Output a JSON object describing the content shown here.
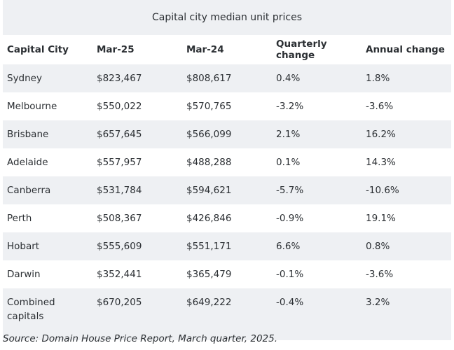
{
  "title": "Capital city median unit prices",
  "headers": [
    "Capital City",
    "Mar-25",
    "Mar-24",
    "Quarterly change",
    "Annual change"
  ],
  "rows": [
    [
      "Sydney",
      "$823,467",
      "$808,617",
      "0.4%",
      "1.8%"
    ],
    [
      "Melbourne",
      "$550,022",
      "$570,765",
      "-3.2%",
      "-3.6%"
    ],
    [
      "Brisbane",
      "$657,645",
      "$566,099",
      "2.1%",
      "16.2%"
    ],
    [
      "Adelaide",
      "$557,957",
      "$488,288",
      "0.1%",
      "14.3%"
    ],
    [
      "Canberra",
      "$531,784",
      "$594,621",
      "-5.7%",
      "-10.6%"
    ],
    [
      "Perth",
      "$508,367",
      "$426,846",
      "-0.9%",
      "19.1%"
    ],
    [
      "Hobart",
      "$555,609",
      "$551,171",
      "6.6%",
      "0.8%"
    ],
    [
      "Darwin",
      "$352,441",
      "$365,479",
      "-0.1%",
      "-3.6%"
    ],
    [
      "Combined capitals",
      "$670,205",
      "$649,222",
      "-0.4%",
      "3.2%"
    ]
  ],
  "source": "Source: Domain House Price Report, March quarter, 2025."
}
